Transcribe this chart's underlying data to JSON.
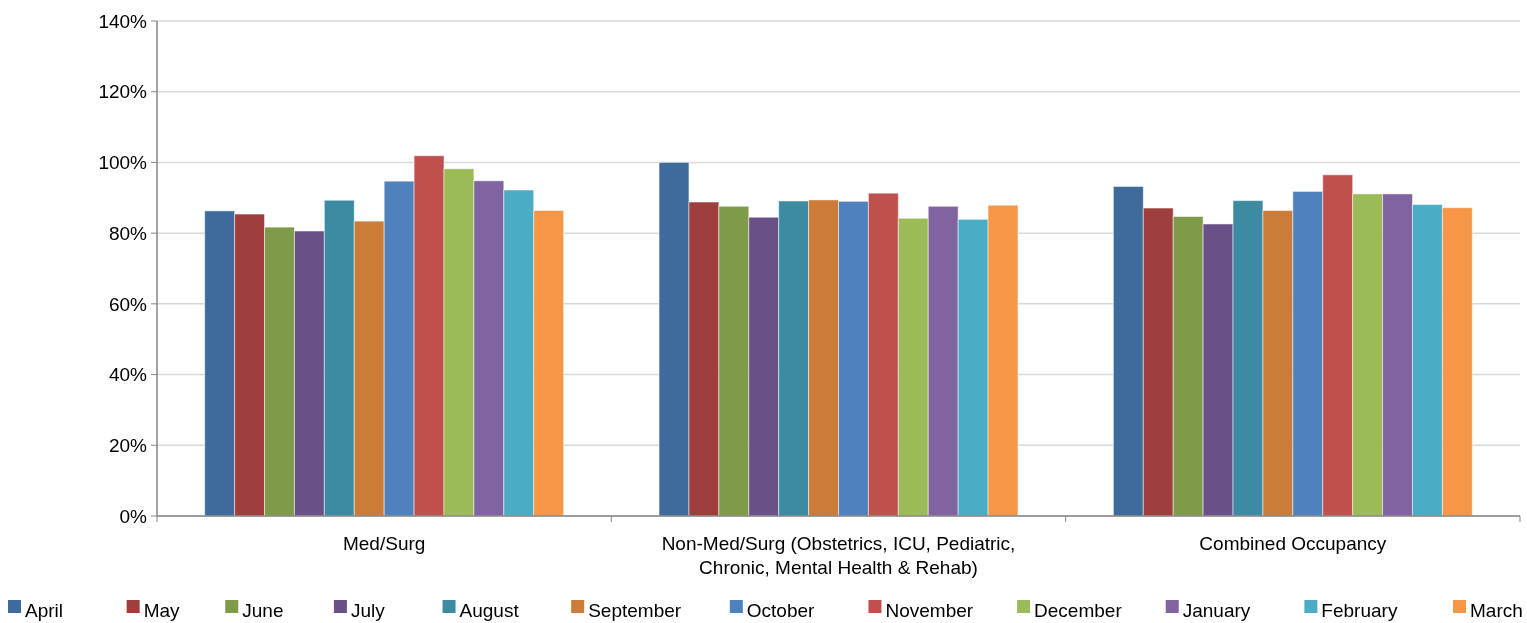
{
  "chart_data": {
    "type": "bar",
    "categories": [
      "Med/Surg",
      "Non-Med/Surg (Obstetrics, ICU, Pediatric, Chronic, Mental Health & Rehab)",
      "Combined Occupancy"
    ],
    "series": [
      {
        "name": "April",
        "color": "#3e6a9c",
        "values": [
          86.3,
          100,
          93.2
        ]
      },
      {
        "name": "May",
        "color": "#9e3f3d",
        "values": [
          85.4,
          88.8,
          87.1
        ]
      },
      {
        "name": "June",
        "color": "#7f9a49",
        "values": [
          81.7,
          87.6,
          84.7
        ]
      },
      {
        "name": "July",
        "color": "#6a5088",
        "values": [
          80.6,
          84.5,
          82.6
        ]
      },
      {
        "name": "August",
        "color": "#3c8ba2",
        "values": [
          89.3,
          89.1,
          89.2
        ]
      },
      {
        "name": "September",
        "color": "#cc7c38",
        "values": [
          83.4,
          89.4,
          86.4
        ]
      },
      {
        "name": "October",
        "color": "#4f81bd",
        "values": [
          94.7,
          89.0,
          91.8
        ]
      },
      {
        "name": "November",
        "color": "#c0504d",
        "values": [
          101.9,
          91.3,
          96.5
        ]
      },
      {
        "name": "December",
        "color": "#9bbb59",
        "values": [
          98.2,
          84.2,
          91.1
        ]
      },
      {
        "name": "January",
        "color": "#8064a2",
        "values": [
          94.8,
          87.6,
          91.1
        ]
      },
      {
        "name": "February",
        "color": "#4bacc6",
        "values": [
          92.2,
          83.9,
          88.1
        ]
      },
      {
        "name": "March",
        "color": "#f79646",
        "values": [
          86.4,
          87.9,
          87.2
        ]
      }
    ],
    "ylim": [
      0,
      140
    ],
    "yticks": [
      {
        "value": 0,
        "label": "0%"
      },
      {
        "value": 20,
        "label": "20%"
      },
      {
        "value": 40,
        "label": "40%"
      },
      {
        "value": 60,
        "label": "60%"
      },
      {
        "value": 80,
        "label": "80%"
      },
      {
        "value": 100,
        "label": "100%"
      },
      {
        "value": 120,
        "label": "120%"
      },
      {
        "value": 140,
        "label": "140%"
      }
    ],
    "grid": "y",
    "legend": "bottom"
  }
}
